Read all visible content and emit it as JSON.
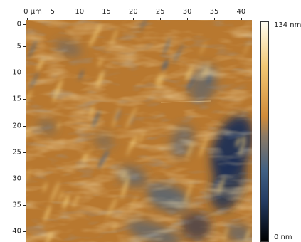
{
  "x_axis": {
    "ticks": [
      "0 µm",
      "5",
      "10",
      "15",
      "20",
      "25",
      "30",
      "35",
      "40"
    ],
    "range": [
      0,
      42
    ]
  },
  "y_axis": {
    "ticks": [
      "0",
      "5",
      "10",
      "15",
      "20",
      "25",
      "30",
      "35",
      "40"
    ],
    "range": [
      0,
      42
    ]
  },
  "colorbar": {
    "max_label": "134 nm",
    "min_label": "0 nm",
    "colors": [
      "#fffdf2",
      "#f3c975",
      "#d18c3a",
      "#8b7a65",
      "#3f5f83",
      "#233a60",
      "#000000"
    ]
  },
  "map_colors": {
    "base": "#b8782f",
    "highlight": "#f4cf7a",
    "shadow": "#3f5f83",
    "deep": "#1a2f55"
  }
}
